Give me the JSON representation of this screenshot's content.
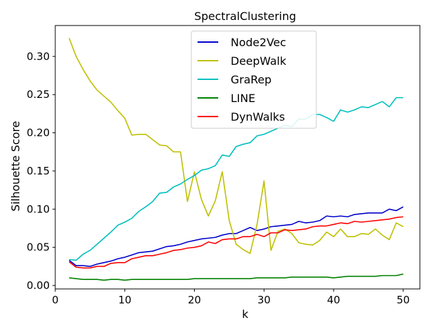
{
  "chart_data": {
    "type": "line",
    "title": "SpectralClustering",
    "xlabel": "k",
    "ylabel": "Silhouette Score",
    "xlim": [
      0,
      52.4
    ],
    "ylim": [
      -0.0045,
      0.3405
    ],
    "xticks": [
      0,
      10,
      20,
      30,
      40,
      50
    ],
    "yticks": [
      0.0,
      0.05,
      0.1,
      0.15,
      0.2,
      0.25,
      0.3
    ],
    "ytick_labels": [
      "0.00",
      "0.05",
      "0.10",
      "0.15",
      "0.20",
      "0.25",
      "0.30"
    ],
    "grid": false,
    "legend_position": "top-center",
    "x": [
      2,
      3,
      4,
      5,
      6,
      7,
      8,
      9,
      10,
      11,
      12,
      13,
      14,
      15,
      16,
      17,
      18,
      19,
      20,
      21,
      22,
      23,
      24,
      25,
      26,
      27,
      28,
      29,
      30,
      31,
      32,
      33,
      34,
      35,
      36,
      37,
      38,
      39,
      40,
      41,
      42,
      43,
      44,
      45,
      46,
      47,
      48,
      49,
      50
    ],
    "series": [
      {
        "name": "Node2Vec",
        "color": "#0000cc",
        "values": [
          0.033,
          0.026,
          0.026,
          0.025,
          0.028,
          0.03,
          0.032,
          0.035,
          0.037,
          0.04,
          0.043,
          0.044,
          0.045,
          0.048,
          0.051,
          0.052,
          0.054,
          0.057,
          0.059,
          0.061,
          0.062,
          0.063,
          0.066,
          0.068,
          0.068,
          0.072,
          0.076,
          0.072,
          0.074,
          0.077,
          0.078,
          0.079,
          0.08,
          0.084,
          0.082,
          0.083,
          0.085,
          0.091,
          0.09,
          0.091,
          0.09,
          0.093,
          0.094,
          0.095,
          0.095,
          0.095,
          0.1,
          0.098,
          0.103
        ]
      },
      {
        "name": "DeepWalk",
        "color": "#bfbf00",
        "values": [
          0.324,
          0.3,
          0.283,
          0.268,
          0.256,
          0.248,
          0.24,
          0.229,
          0.219,
          0.197,
          0.198,
          0.198,
          0.191,
          0.184,
          0.183,
          0.175,
          0.175,
          0.11,
          0.149,
          0.113,
          0.091,
          0.111,
          0.149,
          0.085,
          0.054,
          0.047,
          0.042,
          0.08,
          0.137,
          0.046,
          0.071,
          0.074,
          0.068,
          0.056,
          0.054,
          0.053,
          0.059,
          0.07,
          0.064,
          0.074,
          0.064,
          0.064,
          0.068,
          0.067,
          0.074,
          0.066,
          0.06,
          0.082,
          0.077
        ]
      },
      {
        "name": "GraRep",
        "color": "#00bfbf",
        "values": [
          0.034,
          0.033,
          0.041,
          0.046,
          0.054,
          0.062,
          0.07,
          0.079,
          0.083,
          0.088,
          0.097,
          0.103,
          0.11,
          0.121,
          0.122,
          0.129,
          0.133,
          0.139,
          0.144,
          0.151,
          0.153,
          0.157,
          0.171,
          0.169,
          0.182,
          0.185,
          0.187,
          0.196,
          0.198,
          0.202,
          0.206,
          0.21,
          0.208,
          0.218,
          0.218,
          0.224,
          0.224,
          0.22,
          0.215,
          0.23,
          0.227,
          0.23,
          0.234,
          0.233,
          0.237,
          0.241,
          0.234,
          0.246,
          0.246
        ]
      },
      {
        "name": "LINE",
        "color": "#008000",
        "values": [
          0.01,
          0.009,
          0.008,
          0.008,
          0.008,
          0.007,
          0.008,
          0.008,
          0.007,
          0.008,
          0.008,
          0.008,
          0.008,
          0.008,
          0.008,
          0.008,
          0.008,
          0.008,
          0.009,
          0.009,
          0.009,
          0.009,
          0.009,
          0.009,
          0.009,
          0.009,
          0.009,
          0.01,
          0.01,
          0.01,
          0.01,
          0.01,
          0.011,
          0.011,
          0.011,
          0.011,
          0.011,
          0.011,
          0.01,
          0.011,
          0.012,
          0.012,
          0.012,
          0.012,
          0.012,
          0.013,
          0.013,
          0.013,
          0.015
        ]
      },
      {
        "name": "DynWalks",
        "color": "#ff0000",
        "values": [
          0.031,
          0.024,
          0.023,
          0.023,
          0.025,
          0.025,
          0.029,
          0.03,
          0.03,
          0.035,
          0.037,
          0.039,
          0.039,
          0.041,
          0.043,
          0.046,
          0.047,
          0.049,
          0.05,
          0.052,
          0.057,
          0.055,
          0.06,
          0.061,
          0.061,
          0.064,
          0.064,
          0.067,
          0.064,
          0.069,
          0.069,
          0.073,
          0.072,
          0.073,
          0.074,
          0.077,
          0.078,
          0.078,
          0.08,
          0.082,
          0.081,
          0.084,
          0.083,
          0.084,
          0.085,
          0.086,
          0.087,
          0.089,
          0.09
        ]
      }
    ]
  }
}
